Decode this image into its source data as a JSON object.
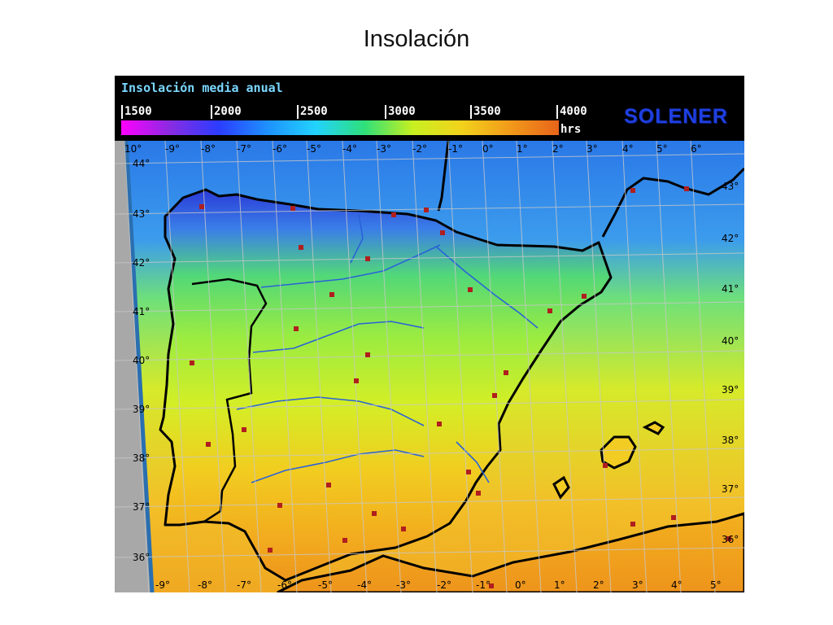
{
  "slide": {
    "title": "Insolación"
  },
  "legend": {
    "title": "Insolación media anual",
    "ticks": [
      "1500",
      "2000",
      "2500",
      "3000",
      "3500",
      "4000"
    ],
    "units": "hrs",
    "brand": "SOLENER",
    "gradient_stops": [
      "#ff00ff",
      "#8a2be2",
      "#2b3cff",
      "#1e90ff",
      "#22d3ff",
      "#2ee07a",
      "#c8f020",
      "#f2d21b",
      "#f29a1a",
      "#e8641a"
    ]
  },
  "map": {
    "lon_labels_top": [
      "10°",
      "-9°",
      "-8°",
      "-7°",
      "-6°",
      "-5°",
      "-4°",
      "-3°",
      "-2°",
      "-1°",
      "0°",
      "1°",
      "2°",
      "3°",
      "4°",
      "5°",
      "6°"
    ],
    "lon_labels_bottom": [
      "-9°",
      "-8°",
      "-7°",
      "-6°",
      "-5°",
      "-4°",
      "-3°",
      "-2°",
      "-1°",
      "0°",
      "1°",
      "2°",
      "3°",
      "4°",
      "5°"
    ],
    "lat_labels_left": [
      "44°",
      "43°",
      "42°",
      "41°",
      "40°",
      "39°",
      "38°",
      "37°",
      "36°"
    ],
    "lat_labels_right": [
      "43°",
      "42°",
      "41°",
      "40°",
      "39°",
      "38°",
      "37°",
      "36°"
    ],
    "colors": {
      "sea_north": "#2a78e8",
      "land_north": "#1a3ad8",
      "land_mid": "#58e070",
      "land_plateau": "#c8ee28",
      "land_south": "#f2b620",
      "sea_south": "#f2c028",
      "coast": "#000000",
      "river": "#2a62d8",
      "grid": "#c8c8c8",
      "city": "#b01e1e",
      "frame_edge": "#2a6fb0"
    }
  }
}
